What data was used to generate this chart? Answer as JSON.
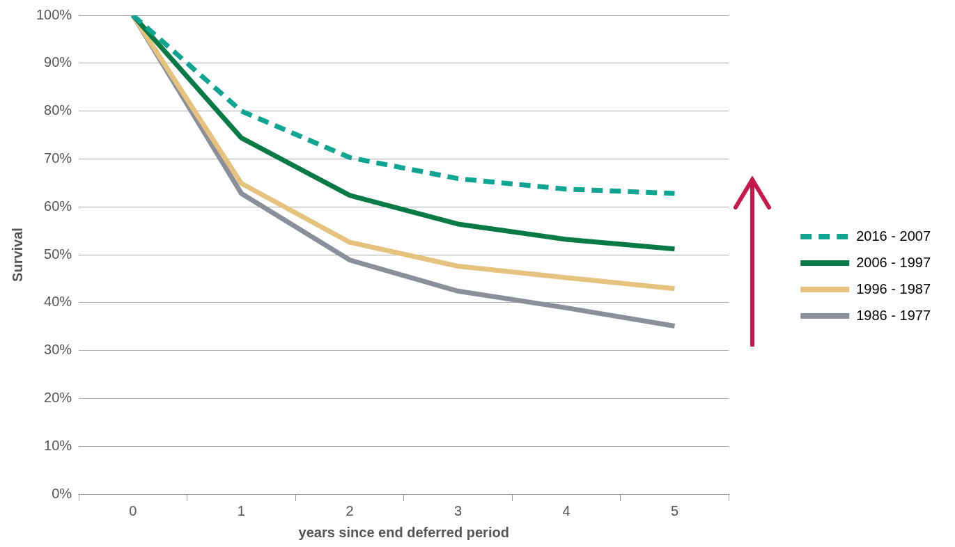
{
  "chart_data": {
    "type": "line",
    "xlabel": "years since end deferred period",
    "ylabel": "Survival",
    "categories": [
      "0",
      "1",
      "2",
      "3",
      "4",
      "5"
    ],
    "series": [
      {
        "name": "2016 - 2007",
        "color": "#0ea591",
        "line_style": "dashed",
        "values": [
          100,
          80.0,
          70.3,
          65.9,
          63.7,
          62.8
        ]
      },
      {
        "name": "2006 - 1997",
        "color": "#087a45",
        "values": [
          100,
          74.4,
          62.4,
          56.4,
          53.2,
          51.2
        ]
      },
      {
        "name": "1996 - 1987",
        "color": "#e6c27f",
        "values": [
          100,
          64.9,
          52.6,
          47.6,
          45.2,
          42.9
        ]
      },
      {
        "name": "1986 - 1977",
        "color": "#8a8f99",
        "values": [
          100,
          62.8,
          48.9,
          42.4,
          38.9,
          35.1
        ]
      }
    ],
    "ylim": [
      0,
      100
    ],
    "yticks": [
      {
        "value": 0,
        "label": "0%"
      },
      {
        "value": 10,
        "label": "10%"
      },
      {
        "value": 20,
        "label": "20%"
      },
      {
        "value": 30,
        "label": "30%"
      },
      {
        "value": 40,
        "label": "40%"
      },
      {
        "value": 50,
        "label": "50%"
      },
      {
        "value": 60,
        "label": "60%"
      },
      {
        "value": 70,
        "label": "70%"
      },
      {
        "value": 80,
        "label": "80%"
      },
      {
        "value": 90,
        "label": "90%"
      },
      {
        "value": 100,
        "label": "100%"
      }
    ],
    "grid": "y",
    "legend": "right",
    "marker": "none"
  }
}
